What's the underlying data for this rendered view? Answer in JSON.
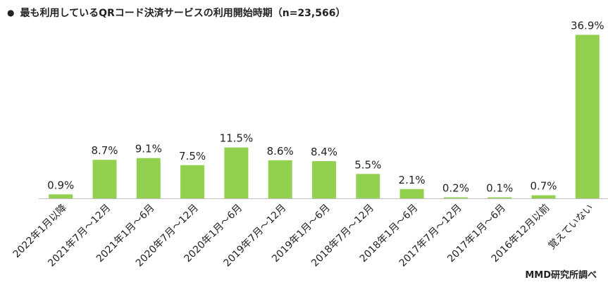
{
  "title": {
    "bullet": "●",
    "text": "最も利用しているQRコード決済サービスの利用開始時期（n=23,566）"
  },
  "source": "MMD研究所調べ",
  "colors": {
    "bar": "#92d050",
    "axis": "#bfbfbf",
    "text": "#222222"
  },
  "chart_data": {
    "type": "bar",
    "categories": [
      "2022年1月以降",
      "2021年7月～12月",
      "2021年1月～6月",
      "2020年7月～12月",
      "2020年1月～6月",
      "2019年7月～12月",
      "2019年1月～6月",
      "2018年7月～12月",
      "2018年1月～6月",
      "2017年7月～12月",
      "2017年1月～6月",
      "2016年12月以前",
      "覚えていない"
    ],
    "values": [
      0.9,
      8.7,
      9.1,
      7.5,
      11.5,
      8.6,
      8.4,
      5.5,
      2.1,
      0.2,
      0.1,
      0.7,
      36.9
    ],
    "data_labels": [
      "0.9%",
      "8.7%",
      "9.1%",
      "7.5%",
      "11.5%",
      "8.6%",
      "8.4%",
      "5.5%",
      "2.1%",
      "0.2%",
      "0.1%",
      "0.7%",
      "36.9%"
    ],
    "ylim": [
      0,
      40
    ],
    "y_axis_visible": false,
    "grid": false,
    "legend": "none"
  }
}
